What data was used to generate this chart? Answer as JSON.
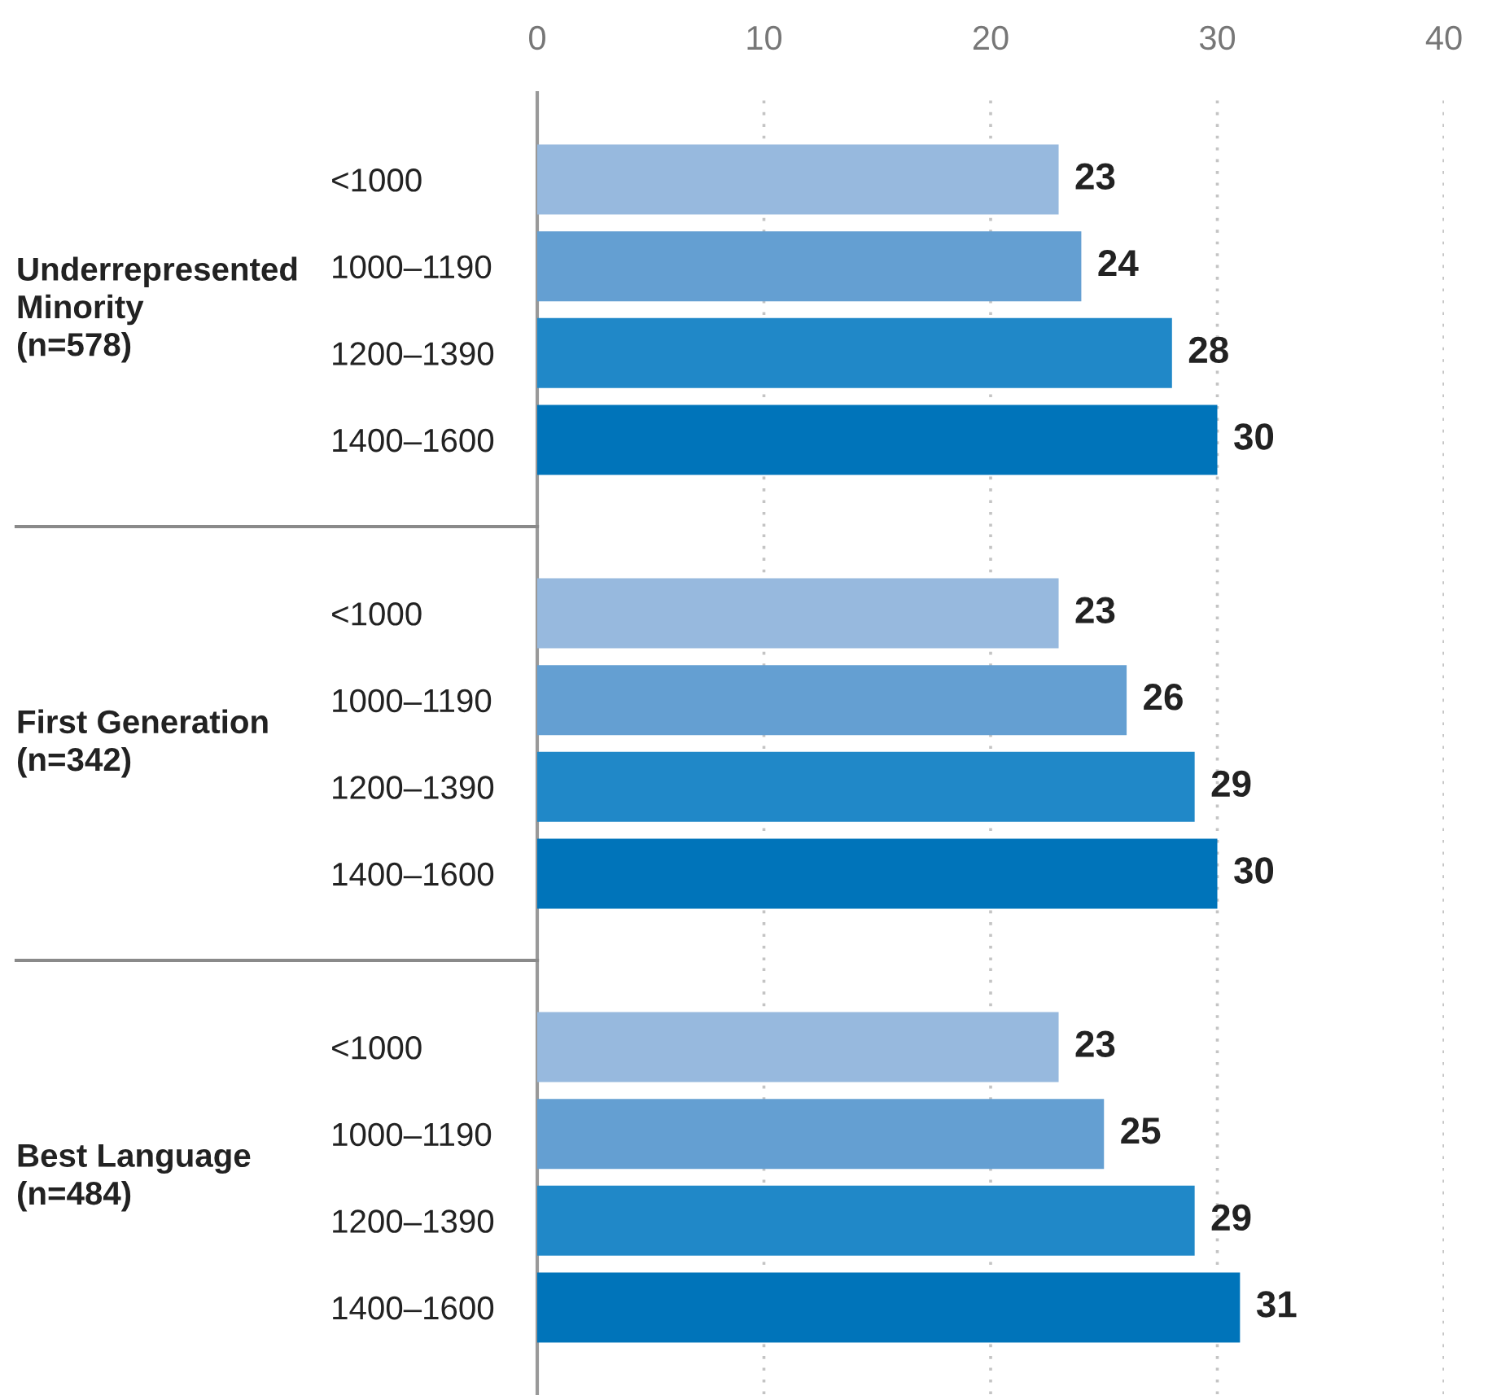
{
  "chart_data": [
    {
      "type": "bar",
      "orientation": "horizontal",
      "ylabel": "Underrepresented\nMinority\n(n=578)",
      "categories": [
        "<1000",
        "1000–1190",
        "1200–1390",
        "1400–1600"
      ],
      "values": [
        23,
        24,
        28,
        30
      ],
      "colors": [
        "#97b9de",
        "#649fd2",
        "#2088c8",
        "#0074ba"
      ],
      "data_labels": true,
      "xlim": [
        0,
        40
      ],
      "xticks": [
        0,
        10,
        20,
        30,
        40
      ],
      "grid": "x"
    },
    {
      "type": "bar",
      "orientation": "horizontal",
      "ylabel": "First Generation\n(n=342)",
      "categories": [
        "<1000",
        "1000–1190",
        "1200–1390",
        "1400–1600"
      ],
      "values": [
        23,
        26,
        29,
        30
      ],
      "colors": [
        "#97b9de",
        "#649fd2",
        "#2088c8",
        "#0074ba"
      ],
      "data_labels": true,
      "xlim": [
        0,
        40
      ],
      "xticks": [
        0,
        10,
        20,
        30,
        40
      ],
      "grid": "x",
      "tick_labels": "y"
    },
    {
      "type": "bar",
      "orientation": "horizontal",
      "ylabel": "Best Language\n(n=484)",
      "categories": [
        "<1000",
        "1000–1190",
        "1200–1390",
        "1400–1600"
      ],
      "values": [
        23,
        25,
        29,
        31
      ],
      "colors": [
        "#97b9de",
        "#649fd2",
        "#2088c8",
        "#0074ba"
      ],
      "data_labels": true,
      "xlim": [
        0,
        40
      ],
      "xticks": [
        0,
        10,
        20,
        30,
        40
      ],
      "grid": "x",
      "tick_labels": "y"
    }
  ]
}
